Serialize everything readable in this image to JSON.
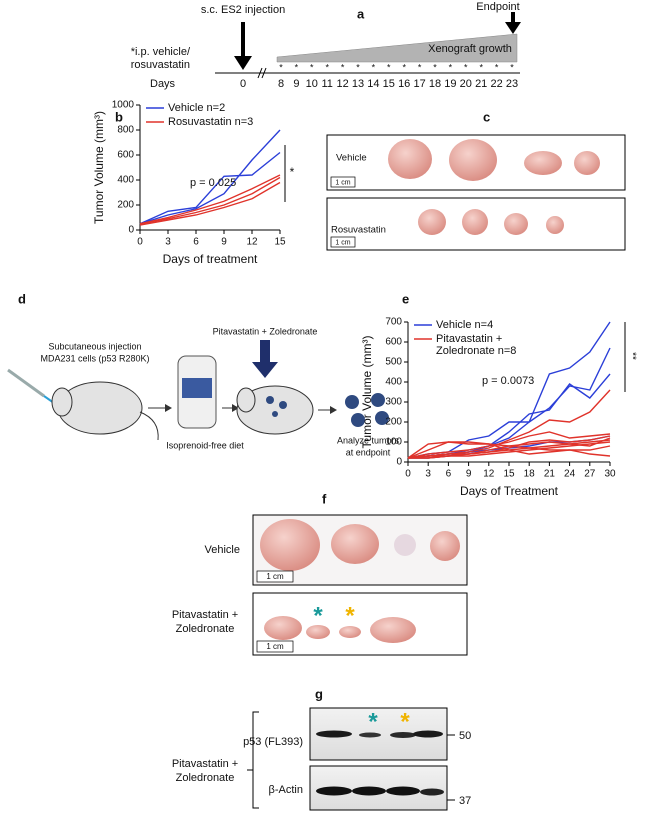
{
  "panel_a": {
    "letter": "a",
    "injection": "s.c. ES2 injection",
    "endpoint": "Endpoint",
    "treatment": [
      "*i.p. vehicle/",
      "rosuvastatin"
    ],
    "growth": "Xenograft growth",
    "days_label": "Days",
    "days": [
      0,
      8,
      9,
      10,
      11,
      12,
      13,
      14,
      15,
      16,
      17,
      18,
      19,
      20,
      21,
      22,
      23
    ],
    "dose_mark": "*"
  },
  "chart_data": [
    {
      "type": "line",
      "panel_label": "b",
      "xlabel": "Days of treatment",
      "ylabel": "Tumor Volume (mm³)",
      "x": [
        0,
        3,
        6,
        9,
        12,
        15
      ],
      "xlim": [
        0,
        15
      ],
      "xticks": [
        0,
        3,
        6,
        9,
        12,
        15
      ],
      "ylim": [
        0,
        1000
      ],
      "yticks": [
        0,
        200,
        400,
        600,
        800,
        1000
      ],
      "series": [
        {
          "name": "Vehicle n=2",
          "color": "#2b3fd8",
          "lines": [
            [
              50,
              150,
              180,
              430,
              440,
              620
            ],
            [
              50,
              120,
              170,
              290,
              560,
              800
            ]
          ]
        },
        {
          "name": "Rosuvastatin n=3",
          "color": "#e0332b",
          "lines": [
            [
              50,
              100,
              160,
              230,
              330,
              440
            ],
            [
              50,
              90,
              140,
              200,
              290,
              420
            ],
            [
              40,
              80,
              120,
              180,
              250,
              380
            ]
          ]
        }
      ],
      "annotations": [
        "p = 0.025",
        "*"
      ]
    },
    {
      "type": "line",
      "panel_label": "e",
      "xlabel": "Days of Treatment",
      "ylabel": "Tumor Volume (mm³)",
      "x": [
        0,
        3,
        6,
        9,
        12,
        15,
        18,
        21,
        24,
        27,
        30
      ],
      "xlim": [
        0,
        30
      ],
      "xticks": [
        0,
        3,
        6,
        9,
        12,
        15,
        18,
        21,
        24,
        27,
        30
      ],
      "ylim": [
        0,
        700
      ],
      "yticks": [
        0,
        100,
        200,
        300,
        400,
        500,
        600,
        700
      ],
      "series": [
        {
          "name": "Vehicle n=4",
          "color": "#2b3fd8",
          "lines": [
            [
              20,
              30,
              40,
              60,
              80,
              120,
              200,
              440,
              470,
              550,
              700
            ],
            [
              20,
              40,
              50,
              110,
              130,
              200,
              200,
              270,
              380,
              360,
              570
            ],
            [
              20,
              20,
              30,
              50,
              80,
              150,
              240,
              260,
              390,
              320,
              440
            ],
            [
              20,
              30,
              40,
              50,
              60,
              70,
              80,
              100,
              100,
              110,
              130
            ]
          ]
        },
        {
          "name": "Pitavastatin + Zoledronate n=8",
          "color": "#e0332b",
          "lines": [
            [
              20,
              30,
              40,
              50,
              70,
              110,
              150,
              210,
              200,
              250,
              360
            ],
            [
              20,
              40,
              50,
              60,
              80,
              100,
              130,
              150,
              120,
              130,
              140
            ],
            [
              20,
              60,
              100,
              90,
              90,
              80,
              70,
              60,
              60,
              60,
              80
            ],
            [
              20,
              90,
              100,
              100,
              90,
              60,
              40,
              50,
              60,
              40,
              30
            ],
            [
              20,
              30,
              30,
              40,
              50,
              70,
              100,
              110,
              100,
              110,
              130
            ],
            [
              20,
              30,
              40,
              40,
              60,
              80,
              90,
              100,
              90,
              80,
              120
            ],
            [
              20,
              20,
              30,
              40,
              50,
              60,
              70,
              80,
              90,
              100,
              110
            ],
            [
              20,
              20,
              30,
              30,
              40,
              50,
              60,
              70,
              80,
              90,
              100
            ]
          ]
        }
      ],
      "annotations": [
        "p = 0.0073",
        "**"
      ]
    }
  ],
  "panel_c": {
    "letter": "c",
    "rows": [
      {
        "label": "Vehicle",
        "scale": "1 cm"
      },
      {
        "label": "Rosuvastatin",
        "scale": "1 cm"
      }
    ]
  },
  "panel_d": {
    "letter": "d",
    "injection": [
      "Subcutaneous injection",
      "MDA231 cells (p53 R280K)"
    ],
    "treatment": "Pitavastatin + Zoledronate",
    "diet": "Isoprenoid-free diet",
    "analyze": [
      "Analyze tumors",
      "at endpoint"
    ]
  },
  "panel_f": {
    "letter": "f",
    "rows": [
      {
        "label": [
          "Vehicle"
        ],
        "scale": "1 cm"
      },
      {
        "label": [
          "Pitavastatin +",
          "Zoledronate"
        ],
        "scale": "1 cm"
      }
    ],
    "marks": [
      "*",
      "*"
    ]
  },
  "panel_g": {
    "letter": "g",
    "blots": [
      "p53 (FL393)",
      "β-Actin"
    ],
    "sizes": [
      "50",
      "37"
    ],
    "group": [
      "Pitavastatin +",
      "Zoledronate"
    ],
    "marks": [
      "*",
      "*"
    ]
  }
}
